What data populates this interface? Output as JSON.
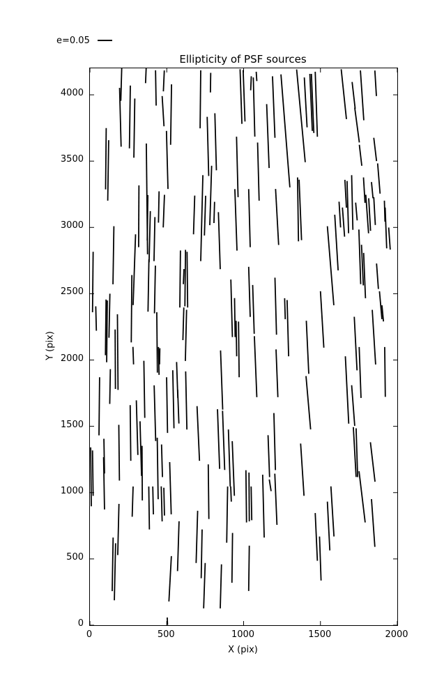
{
  "title": "Ellipticity of PSF sources",
  "legend": {
    "label": "e=0.05"
  },
  "chart_data": {
    "type": "scatter",
    "mark": "whisker-segments",
    "title": "Ellipticity of PSF sources",
    "xlabel": "X (pix)",
    "ylabel": "Y (pix)",
    "xlim": [
      0,
      2000
    ],
    "ylim": [
      0,
      4200
    ],
    "xticks": [
      0,
      500,
      1000,
      1500,
      2000
    ],
    "yticks": [
      0,
      500,
      1000,
      1500,
      2000,
      2500,
      3000,
      3500,
      4000
    ],
    "grid": false,
    "legend_scale_label": "e=0.05",
    "line_color": "#000000",
    "whiskers_format": "[x_center, y_center, half_dx, half_dy] in pixel data units; segment runs (x-dx, y+dy) to (x+dx, y-dy)",
    "whiskers": [
      [
        204,
        4078,
        -3,
        123
      ],
      [
        198,
        3831,
        5,
        222
      ],
      [
        260,
        3833,
        -3,
        237
      ],
      [
        289,
        3749,
        -3,
        223
      ],
      [
        364,
        4145,
        -2,
        57
      ],
      [
        429,
        4052,
        2,
        133
      ],
      [
        481,
        4105,
        -3,
        79
      ],
      [
        476,
        3877,
        6,
        114
      ],
      [
        528,
        3851,
        -3,
        228
      ],
      [
        503,
        3509,
        5,
        219
      ],
      [
        104,
        3518,
        -2,
        231
      ],
      [
        119,
        3430,
        -3,
        228
      ],
      [
        371,
        3215,
        4,
        418
      ],
      [
        318,
        3084,
        -1,
        233
      ],
      [
        719,
        3966,
        -2,
        219
      ],
      [
        785,
        4092,
        -1,
        74
      ],
      [
        768,
        3611,
        5,
        223
      ],
      [
        818,
        3646,
        5,
        215
      ],
      [
        983,
        3987,
        6,
        206
      ],
      [
        1003,
        3993,
        6,
        194
      ],
      [
        1048,
        4087,
        -2,
        53
      ],
      [
        1068,
        3908,
        5,
        223
      ],
      [
        1084,
        4139,
        2,
        35
      ],
      [
        1196,
        3908,
        8,
        232
      ],
      [
        1272,
        3728,
        29,
        426
      ],
      [
        1158,
        3689,
        8,
        241
      ],
      [
        959,
        3456,
        5,
        228
      ],
      [
        1096,
        3421,
        5,
        219
      ],
      [
        1373,
        3842,
        28,
        350
      ],
      [
        1404,
        3943,
        9,
        188
      ],
      [
        1439,
        3943,
        8,
        215
      ],
      [
        1449,
        3935,
        8,
        223
      ],
      [
        1473,
        3929,
        7,
        245
      ],
      [
        1652,
        4005,
        17,
        188
      ],
      [
        1716,
        3996,
        10,
        101
      ],
      [
        1738,
        3772,
        15,
        131
      ],
      [
        1771,
        3996,
        11,
        188
      ],
      [
        1761,
        3544,
        8,
        79
      ],
      [
        1859,
        4087,
        5,
        96
      ],
      [
        1856,
        3588,
        9,
        88
      ],
      [
        1880,
        3369,
        8,
        114
      ],
      [
        1837,
        3281,
        5,
        61
      ],
      [
        1785,
        3281,
        5,
        96
      ],
      [
        19,
        2588,
        -2,
        228
      ],
      [
        153,
        2790,
        -3,
        219
      ],
      [
        289,
        2681,
        -8,
        267
      ],
      [
        271,
        2387,
        -2,
        254
      ],
      [
        375,
        3073,
        -2,
        171
      ],
      [
        389,
        2930,
        -4,
        193
      ],
      [
        420,
        2912,
        -3,
        166
      ],
      [
        448,
        3154,
        -2,
        118
      ],
      [
        481,
        3123,
        -4,
        123
      ],
      [
        381,
        2562,
        -3,
        197
      ],
      [
        423,
        2532,
        -3,
        180
      ],
      [
        587,
        2611,
        -2,
        215
      ],
      [
        610,
        2629,
        -2,
        57
      ],
      [
        620,
        2618,
        -2,
        213
      ],
      [
        634,
        2606,
        2,
        210
      ],
      [
        608,
        2273,
        -3,
        123
      ],
      [
        625,
        2186,
        -4,
        193
      ],
      [
        127,
        2334,
        -3,
        166
      ],
      [
        40,
        2313,
        2,
        92
      ],
      [
        728,
        3070,
        -7,
        324
      ],
      [
        749,
        3089,
        -4,
        150
      ],
      [
        786,
        3241,
        -6,
        224
      ],
      [
        809,
        3113,
        -2,
        80
      ],
      [
        842,
        2900,
        6,
        215
      ],
      [
        950,
        3057,
        7,
        232
      ],
      [
        1038,
        3070,
        5,
        219
      ],
      [
        678,
        3094,
        -4,
        146
      ],
      [
        1038,
        2514,
        5,
        189
      ],
      [
        1064,
        2382,
        5,
        184
      ],
      [
        922,
        2390,
        5,
        217
      ],
      [
        943,
        2320,
        2,
        147
      ],
      [
        1209,
        2406,
        5,
        215
      ],
      [
        1269,
        2387,
        2,
        79
      ],
      [
        1218,
        3079,
        10,
        211
      ],
      [
        1354,
        3136,
        3,
        241
      ],
      [
        1369,
        3132,
        8,
        228
      ],
      [
        1566,
        2711,
        21,
        298
      ],
      [
        1604,
        2886,
        11,
        210
      ],
      [
        1626,
        3097,
        5,
        97
      ],
      [
        1664,
        3254,
        5,
        105
      ],
      [
        1650,
        3040,
        7,
        110
      ],
      [
        1678,
        3153,
        5,
        197
      ],
      [
        1707,
        3188,
        4,
        206
      ],
      [
        1734,
        3120,
        5,
        67
      ],
      [
        1756,
        2778,
        6,
        206
      ],
      [
        1773,
        2716,
        6,
        153
      ],
      [
        1787,
        2637,
        6,
        171
      ],
      [
        1804,
        3101,
        9,
        145
      ],
      [
        1820,
        3097,
        6,
        123
      ],
      [
        1852,
        3123,
        5,
        105
      ],
      [
        1871,
        2632,
        6,
        96
      ],
      [
        1892,
        2413,
        8,
        105
      ],
      [
        1918,
        3123,
        2,
        79
      ],
      [
        1926,
        2996,
        5,
        154
      ],
      [
        1949,
        2916,
        5,
        83
      ],
      [
        1905,
        2352,
        5,
        61
      ],
      [
        1511,
        2306,
        11,
        213
      ],
      [
        103,
        2246,
        -2,
        210
      ],
      [
        111,
        2216,
        -2,
        233
      ],
      [
        165,
        2006,
        1,
        224
      ],
      [
        181,
        2060,
        2,
        285
      ],
      [
        61,
        1651,
        -2,
        219
      ],
      [
        131,
        1800,
        -2,
        131
      ],
      [
        93,
        1275,
        2,
        131
      ],
      [
        190,
        1301,
        2,
        210
      ],
      [
        264,
        1450,
        2,
        210
      ],
      [
        282,
        2033,
        2,
        66
      ],
      [
        307,
        1490,
        5,
        206
      ],
      [
        331,
        1332,
        5,
        206
      ],
      [
        354,
        1779,
        3,
        215
      ],
      [
        437,
        2133,
        2,
        228
      ],
      [
        448,
        1993,
        2,
        105
      ],
      [
        454,
        2028,
        -1,
        61
      ],
      [
        423,
        1599,
        5,
        210
      ],
      [
        469,
        1240,
        3,
        123
      ],
      [
        502,
        1660,
        3,
        210
      ],
      [
        543,
        1704,
        4,
        219
      ],
      [
        568,
        1849,
        4,
        136
      ],
      [
        575,
        1648,
        4,
        127
      ],
      [
        627,
        1695,
        4,
        219
      ],
      [
        857,
        1849,
        7,
        223
      ],
      [
        870,
        1394,
        7,
        223
      ],
      [
        953,
        2162,
        2,
        134
      ],
      [
        969,
        2080,
        2,
        210
      ],
      [
        1078,
        1950,
        8,
        230
      ],
      [
        1217,
        1900,
        6,
        180
      ],
      [
        1288,
        2240,
        5,
        212
      ],
      [
        705,
        1446,
        8,
        206
      ],
      [
        837,
        1404,
        7,
        225
      ],
      [
        1164,
        1275,
        5,
        158
      ],
      [
        1202,
        1385,
        5,
        215
      ],
      [
        1416,
        2096,
        8,
        200
      ],
      [
        1421,
        1678,
        15,
        201
      ],
      [
        1673,
        1774,
        11,
        254
      ],
      [
        1729,
        2124,
        9,
        202
      ],
      [
        1758,
        1906,
        6,
        192
      ],
      [
        1713,
        1657,
        10,
        153
      ],
      [
        1723,
        1306,
        9,
        188
      ],
      [
        1737,
        1301,
        5,
        184
      ],
      [
        1848,
        2172,
        11,
        206
      ],
      [
        1920,
        1910,
        2,
        188
      ],
      [
        1840,
        1231,
        15,
        149
      ],
      [
        7,
        1119,
        2,
        222
      ],
      [
        19,
        1147,
        2,
        171
      ],
      [
        92,
        1070,
        3,
        197
      ],
      [
        185,
        722,
        -4,
        193
      ],
      [
        148,
        459,
        -3,
        202
      ],
      [
        163,
        403,
        -4,
        215
      ],
      [
        278,
        932,
        -3,
        114
      ],
      [
        340,
        1147,
        1,
        206
      ],
      [
        441,
        1182,
        3,
        232
      ],
      [
        385,
        884,
        2,
        162
      ],
      [
        411,
        941,
        2,
        105
      ],
      [
        467,
        915,
        3,
        132
      ],
      [
        483,
        932,
        2,
        105
      ],
      [
        524,
        1033,
        5,
        197
      ],
      [
        575,
        596,
        -5,
        188
      ],
      [
        522,
        350,
        -8,
        171
      ],
      [
        504,
        30,
        1,
        28
      ],
      [
        772,
        1007,
        2,
        206
      ],
      [
        696,
        666,
        -5,
        197
      ],
      [
        727,
        538,
        -3,
        184
      ],
      [
        745,
        298,
        -5,
        171
      ],
      [
        852,
        293,
        -4,
        166
      ],
      [
        907,
        1261,
        6,
        215
      ],
      [
        893,
        834,
        -3,
        212
      ],
      [
        933,
        1182,
        7,
        206
      ],
      [
        918,
        989,
        2,
        57
      ],
      [
        926,
        508,
        -2,
        188
      ],
      [
        1017,
        972,
        2,
        197
      ],
      [
        1036,
        967,
        1,
        184
      ],
      [
        1035,
        429,
        -2,
        171
      ],
      [
        1051,
        919,
        2,
        127
      ],
      [
        1129,
        898,
        5,
        237
      ],
      [
        1173,
        1055,
        6,
        44
      ],
      [
        1210,
        950,
        7,
        193
      ],
      [
        1382,
        1173,
        11,
        197
      ],
      [
        1578,
        858,
        10,
        189
      ],
      [
        1553,
        748,
        8,
        184
      ],
      [
        1473,
        666,
        7,
        180
      ],
      [
        1499,
        503,
        5,
        166
      ],
      [
        1771,
        968,
        20,
        193
      ],
      [
        1843,
        771,
        11,
        180
      ]
    ]
  }
}
